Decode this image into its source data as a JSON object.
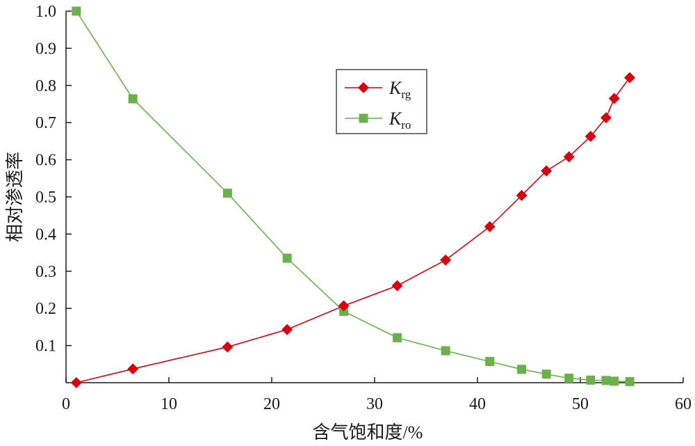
{
  "chart_data": {
    "type": "line",
    "xlabel": "含气饱和度/%",
    "ylabel": "相对渗透率",
    "xlim": [
      0,
      60
    ],
    "ylim": [
      0,
      1.0
    ],
    "x_ticks": [
      "0",
      "10",
      "20",
      "30",
      "40",
      "50",
      "60"
    ],
    "y_ticks": [
      "0.1",
      "0.2",
      "0.3",
      "0.4",
      "0.5",
      "0.6",
      "0.7",
      "0.8",
      "0.9",
      "1.0"
    ],
    "grid": false,
    "legend_position": "top-center",
    "series": [
      {
        "name": "Krg",
        "name_main": "K",
        "name_sub": "rg",
        "color": "#d7000f",
        "marker": "diamond",
        "x": [
          1.0,
          6.5,
          15.7,
          21.5,
          27.0,
          32.2,
          36.9,
          41.2,
          44.3,
          46.7,
          48.9,
          51.0,
          52.5,
          53.3,
          54.8
        ],
        "y": [
          0.0,
          0.037,
          0.096,
          0.143,
          0.207,
          0.261,
          0.33,
          0.42,
          0.504,
          0.57,
          0.608,
          0.663,
          0.713,
          0.765,
          0.821
        ]
      },
      {
        "name": "Kro",
        "name_main": "K",
        "name_sub": "ro",
        "color": "#6ab04c",
        "marker": "square",
        "x": [
          1.0,
          6.5,
          15.7,
          21.5,
          27.0,
          32.2,
          36.9,
          41.2,
          44.3,
          46.7,
          48.9,
          51.0,
          52.5,
          53.3,
          54.8
        ],
        "y": [
          1.0,
          0.764,
          0.51,
          0.335,
          0.192,
          0.121,
          0.086,
          0.057,
          0.036,
          0.023,
          0.012,
          0.007,
          0.006,
          0.004,
          0.003
        ]
      }
    ]
  }
}
